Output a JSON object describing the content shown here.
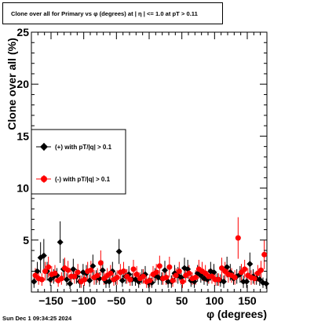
{
  "title": "Clone  over all for Primary vs φ (degrees) at |  η  | <= 1.0 at pT > 0.11",
  "timestamp": "Sun Dec  1 09:34:25 2024",
  "colors": {
    "series1": "#000000",
    "series2": "#ff0000",
    "frame": "#000000",
    "background": "#ffffff"
  },
  "chart_data": {
    "type": "scatter",
    "title": "Clone  over all for Primary vs φ (degrees) at |  η  | <= 1.0 at pT > 0.11",
    "xlabel": "φ (degrees)",
    "ylabel": "Clone  over all (%)",
    "xlim": [
      -180,
      180
    ],
    "ylim": [
      0,
      25
    ],
    "x_ticks": [
      -150,
      -100,
      -50,
      0,
      50,
      100,
      150
    ],
    "x_tick_labels": [
      "−150",
      "−100",
      "−50",
      "0",
      "50",
      "100",
      "150"
    ],
    "y_ticks": [
      5,
      10,
      15,
      20,
      25
    ],
    "y_tick_labels": [
      "5",
      "10",
      "15",
      "20",
      "25"
    ],
    "grid": false,
    "legend_position": "left-middle",
    "series": [
      {
        "name": "(+) with pT/|q| > 0.1",
        "color": "#000000",
        "marker": "diamond",
        "x": [
          -176,
          -166,
          -156,
          -146,
          -136,
          -126,
          -116,
          -106,
          -96,
          -86,
          -76,
          -66,
          -56,
          -46,
          -36,
          -26,
          -16,
          -6,
          4,
          14,
          24,
          34,
          44,
          54,
          64,
          74,
          84,
          94,
          104,
          114,
          124,
          134,
          144,
          154,
          164,
          174,
          -171,
          -161,
          -151,
          -141,
          -131,
          -121,
          -111,
          -101,
          -91,
          -81,
          -71,
          -61,
          -51,
          -41,
          -31,
          -21,
          -11,
          -1,
          9,
          19,
          29,
          39,
          49,
          59,
          69,
          79,
          89,
          99,
          109,
          119,
          129,
          139,
          149,
          159,
          169,
          179
        ],
        "y": [
          1.0,
          3.3,
          2.0,
          1.5,
          4.8,
          1.2,
          2.2,
          1.0,
          1.8,
          2.5,
          1.3,
          1.0,
          2.0,
          3.9,
          1.5,
          1.2,
          1.0,
          1.7,
          0.9,
          1.4,
          2.1,
          1.0,
          1.6,
          2.3,
          1.1,
          1.8,
          1.3,
          2.0,
          1.2,
          1.0,
          1.9,
          1.5,
          1.0,
          2.7,
          1.3,
          0.9,
          2.0,
          3.5,
          1.2,
          1.6,
          2.2,
          0.8,
          1.5,
          1.9,
          1.1,
          1.4,
          2.1,
          1.0,
          1.3,
          1.1,
          1.7,
          1.2,
          1.5,
          0.9,
          1.6,
          1.3,
          1.0,
          1.8,
          1.4,
          2.2,
          1.0,
          1.6,
          1.2,
          1.9,
          1.1,
          2.4,
          1.3,
          1.7,
          1.0,
          1.5,
          1.2,
          0.8
        ],
        "yerr": [
          0.6,
          1.5,
          0.9,
          0.7,
          2.0,
          0.6,
          1.0,
          0.6,
          0.8,
          1.1,
          0.6,
          0.6,
          0.9,
          1.2,
          0.7,
          0.6,
          0.6,
          0.8,
          0.5,
          0.7,
          0.9,
          0.6,
          0.8,
          1.0,
          0.6,
          0.8,
          0.6,
          0.9,
          0.6,
          0.6,
          0.8,
          0.7,
          0.6,
          1.1,
          0.6,
          0.5,
          0.9,
          1.6,
          0.6,
          0.7,
          1.0,
          0.5,
          0.7,
          0.8,
          0.6,
          0.7,
          0.9,
          0.6,
          0.6,
          0.6,
          0.8,
          0.6,
          0.7,
          0.5,
          0.7,
          0.6,
          0.6,
          0.8,
          0.7,
          0.9,
          0.6,
          0.7,
          0.6,
          0.8,
          0.6,
          1.0,
          0.6,
          0.8,
          0.6,
          0.7,
          0.6,
          0.5
        ]
      },
      {
        "name": "(-) with pT/|q| > 0.1",
        "color": "#ff0000",
        "marker": "circle",
        "x": [
          -174,
          -164,
          -154,
          -144,
          -134,
          -124,
          -114,
          -104,
          -94,
          -84,
          -74,
          -64,
          -54,
          -44,
          -34,
          -24,
          -14,
          -4,
          6,
          16,
          26,
          36,
          46,
          56,
          66,
          76,
          86,
          96,
          106,
          116,
          126,
          136,
          146,
          156,
          166,
          176,
          -169,
          -159,
          -149,
          -139,
          -129,
          -119,
          -109,
          -99,
          -89,
          -79,
          -69,
          -59,
          -49,
          -39,
          -29,
          -19,
          -9,
          1,
          11,
          21,
          31,
          41,
          51,
          61,
          71,
          81,
          91,
          101,
          111,
          121,
          131,
          141,
          151,
          161,
          171
        ],
        "y": [
          1.6,
          1.2,
          2.4,
          1.8,
          1.3,
          2.1,
          1.5,
          1.0,
          2.0,
          1.4,
          2.8,
          1.6,
          1.2,
          1.9,
          1.5,
          2.2,
          1.3,
          1.0,
          1.7,
          2.5,
          1.4,
          1.1,
          2.0,
          1.6,
          1.3,
          2.2,
          1.8,
          1.5,
          1.2,
          2.0,
          1.6,
          5.2,
          2.2,
          1.4,
          1.8,
          3.6,
          1.3,
          2.0,
          1.7,
          1.1,
          2.3,
          1.5,
          1.9,
          1.2,
          2.1,
          1.6,
          1.3,
          1.8,
          1.4,
          2.0,
          1.2,
          1.7,
          1.5,
          1.1,
          1.9,
          1.3,
          2.4,
          1.6,
          1.0,
          1.8,
          1.4,
          2.0,
          1.5,
          1.2,
          2.3,
          1.7,
          1.4,
          1.9,
          1.6,
          1.3,
          2.1
        ],
        "yerr": [
          0.7,
          0.6,
          1.0,
          0.8,
          0.6,
          0.9,
          0.7,
          0.6,
          0.9,
          0.7,
          1.2,
          0.7,
          0.6,
          0.8,
          0.7,
          0.9,
          0.6,
          0.6,
          0.8,
          1.0,
          0.7,
          0.6,
          0.9,
          0.7,
          0.6,
          0.9,
          0.8,
          0.7,
          0.6,
          0.9,
          0.7,
          2.0,
          0.9,
          0.7,
          0.8,
          1.4,
          0.6,
          0.9,
          0.8,
          0.6,
          1.0,
          0.7,
          0.8,
          0.6,
          0.9,
          0.7,
          0.6,
          0.8,
          0.7,
          0.9,
          0.6,
          0.8,
          0.7,
          0.6,
          0.8,
          0.6,
          1.0,
          0.7,
          0.6,
          0.8,
          0.7,
          0.9,
          0.7,
          0.6,
          1.0,
          0.8,
          0.7,
          0.8,
          0.7,
          0.6,
          0.9
        ]
      }
    ]
  }
}
